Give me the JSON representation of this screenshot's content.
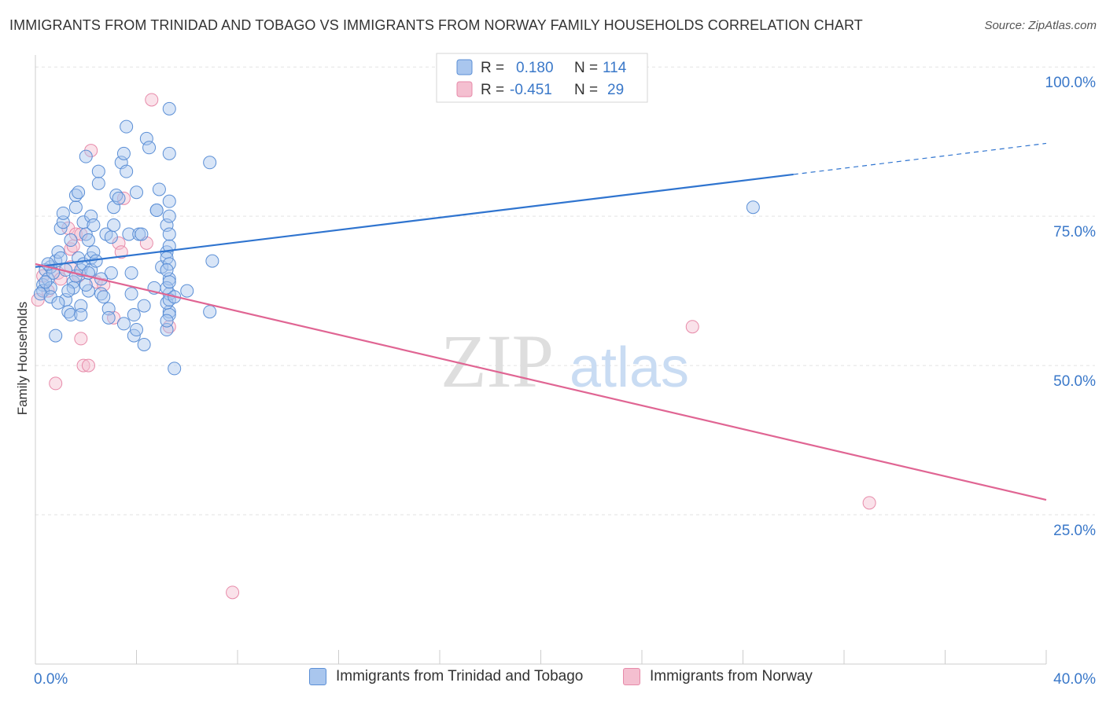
{
  "title": "IMMIGRANTS FROM TRINIDAD AND TOBAGO VS IMMIGRANTS FROM NORWAY FAMILY HOUSEHOLDS CORRELATION CHART",
  "source": "Source: ZipAtlas.com",
  "watermark": {
    "zip": "ZIP",
    "atlas": "atlas"
  },
  "colors": {
    "blue": "#5b8fd6",
    "blue_fill": "#a9c6ee",
    "blue_line": "#2f74cf",
    "pink": "#e78aa9",
    "pink_fill": "#f4bfd0",
    "pink_line": "#e06593",
    "axis_text": "#3a78c9",
    "grid": "#e3e3e3"
  },
  "legend_top": [
    {
      "r_label": "R =",
      "r_value": "0.180",
      "n_label": "N =",
      "n_value": "114"
    },
    {
      "r_label": "R =",
      "r_value": "-0.451",
      "n_label": "N =",
      "n_value": "29"
    }
  ],
  "chart_data": {
    "type": "scatter",
    "title": "IMMIGRANTS FROM TRINIDAD AND TOBAGO VS IMMIGRANTS FROM NORWAY FAMILY HOUSEHOLDS CORRELATION CHART",
    "xlabel": "",
    "ylabel": "Family Households",
    "xlim": [
      0,
      40
    ],
    "ylim": [
      0,
      102
    ],
    "x_tick_labels": [
      "0.0%",
      "40.0%"
    ],
    "y_ticks": [
      25,
      50,
      75,
      100
    ],
    "y_tick_labels": [
      "25.0%",
      "50.0%",
      "75.0%",
      "100.0%"
    ],
    "grid": "horizontal dashed",
    "legend": "top-center and bottom",
    "series": [
      {
        "name": "Immigrants from Trinidad and Tobago",
        "color": "#5b8fd6",
        "regression": {
          "x0": 0,
          "y0": 66.5,
          "x1": 30,
          "y1": 82.0,
          "dash_to_x": 40,
          "dash_to_y": 87.2
        },
        "points": [
          [
            0.3,
            63.5
          ],
          [
            0.3,
            62.5
          ],
          [
            0.4,
            66.0
          ],
          [
            0.5,
            64.5
          ],
          [
            0.6,
            66.5
          ],
          [
            0.7,
            65.5
          ],
          [
            0.8,
            67.5
          ],
          [
            0.6,
            63.0
          ],
          [
            0.5,
            67.0
          ],
          [
            0.8,
            55.0
          ],
          [
            0.9,
            69.0
          ],
          [
            1.0,
            73.0
          ],
          [
            1.0,
            68.0
          ],
          [
            1.1,
            74.0
          ],
          [
            1.1,
            75.5
          ],
          [
            1.2,
            66.0
          ],
          [
            1.2,
            61.0
          ],
          [
            1.3,
            59.0
          ],
          [
            1.4,
            58.5
          ],
          [
            1.4,
            71.0
          ],
          [
            1.5,
            64.0
          ],
          [
            1.5,
            63.0
          ],
          [
            1.6,
            65.0
          ],
          [
            1.6,
            76.5
          ],
          [
            1.6,
            78.5
          ],
          [
            1.7,
            79.0
          ],
          [
            1.7,
            68.0
          ],
          [
            1.8,
            66.0
          ],
          [
            1.8,
            60.0
          ],
          [
            1.8,
            58.5
          ],
          [
            1.9,
            67.0
          ],
          [
            1.9,
            74.0
          ],
          [
            2.0,
            85.0
          ],
          [
            2.0,
            72.0
          ],
          [
            2.1,
            71.0
          ],
          [
            2.2,
            68.0
          ],
          [
            2.2,
            75.0
          ],
          [
            2.2,
            66.0
          ],
          [
            2.3,
            69.0
          ],
          [
            2.4,
            67.5
          ],
          [
            2.1,
            62.5
          ],
          [
            2.0,
            63.5
          ],
          [
            2.1,
            65.5
          ],
          [
            2.3,
            73.5
          ],
          [
            2.5,
            80.5
          ],
          [
            2.5,
            82.5
          ],
          [
            2.6,
            62.0
          ],
          [
            2.7,
            61.5
          ],
          [
            2.8,
            72.0
          ],
          [
            2.9,
            59.5
          ],
          [
            2.9,
            58.0
          ],
          [
            3.0,
            71.5
          ],
          [
            3.0,
            65.5
          ],
          [
            3.1,
            76.5
          ],
          [
            3.2,
            78.5
          ],
          [
            3.3,
            78.0
          ],
          [
            3.1,
            73.5
          ],
          [
            3.4,
            84.0
          ],
          [
            3.5,
            57.0
          ],
          [
            3.5,
            85.5
          ],
          [
            3.6,
            82.5
          ],
          [
            3.6,
            90.0
          ],
          [
            3.7,
            72.0
          ],
          [
            3.8,
            65.5
          ],
          [
            3.8,
            62.0
          ],
          [
            3.9,
            55.0
          ],
          [
            3.9,
            58.5
          ],
          [
            4.0,
            56.0
          ],
          [
            4.0,
            79.0
          ],
          [
            4.1,
            72.0
          ],
          [
            4.2,
            72.0
          ],
          [
            4.3,
            53.5
          ],
          [
            4.3,
            60.0
          ],
          [
            4.4,
            88.0
          ],
          [
            4.5,
            86.5
          ],
          [
            4.7,
            63.0
          ],
          [
            4.8,
            76.0
          ],
          [
            4.9,
            79.5
          ],
          [
            5.0,
            66.5
          ],
          [
            5.2,
            69.0
          ],
          [
            5.3,
            59.0
          ],
          [
            5.3,
            93.0
          ],
          [
            5.3,
            85.5
          ],
          [
            5.2,
            73.5
          ],
          [
            5.3,
            64.5
          ],
          [
            5.3,
            58.5
          ],
          [
            5.3,
            70.0
          ],
          [
            5.2,
            60.5
          ],
          [
            5.2,
            68.0
          ],
          [
            5.3,
            62.0
          ],
          [
            5.2,
            56.0
          ],
          [
            5.2,
            63.0
          ],
          [
            5.3,
            61.0
          ],
          [
            5.3,
            67.0
          ],
          [
            5.3,
            75.0
          ],
          [
            5.3,
            77.5
          ],
          [
            5.3,
            72.0
          ],
          [
            5.3,
            64.0
          ],
          [
            5.2,
            57.5
          ],
          [
            5.2,
            66.0
          ],
          [
            5.5,
            61.5
          ],
          [
            5.5,
            49.5
          ],
          [
            6.0,
            62.5
          ],
          [
            6.9,
            84.0
          ],
          [
            6.9,
            59.0
          ],
          [
            7.0,
            67.5
          ],
          [
            28.4,
            76.5
          ],
          [
            0.2,
            62.0
          ],
          [
            0.4,
            64.0
          ],
          [
            0.6,
            61.5
          ],
          [
            0.9,
            60.5
          ],
          [
            1.3,
            62.5
          ],
          [
            2.6,
            64.5
          ],
          [
            4.8,
            76.0
          ]
        ]
      },
      {
        "name": "Immigrants from Norway",
        "color": "#e78aa9",
        "regression": {
          "x0": 0,
          "y0": 67.0,
          "x1": 40,
          "y1": 27.5
        },
        "points": [
          [
            0.1,
            61.0
          ],
          [
            0.3,
            65.0
          ],
          [
            0.5,
            62.5
          ],
          [
            0.8,
            47.0
          ],
          [
            0.9,
            65.5
          ],
          [
            1.0,
            64.5
          ],
          [
            1.3,
            73.0
          ],
          [
            1.4,
            66.5
          ],
          [
            1.4,
            69.5
          ],
          [
            1.5,
            70.0
          ],
          [
            1.6,
            72.0
          ],
          [
            1.7,
            65.0
          ],
          [
            1.8,
            54.5
          ],
          [
            1.8,
            72.0
          ],
          [
            1.9,
            50.0
          ],
          [
            2.1,
            50.0
          ],
          [
            2.2,
            86.0
          ],
          [
            2.4,
            64.0
          ],
          [
            2.7,
            63.5
          ],
          [
            3.1,
            58.0
          ],
          [
            3.3,
            70.5
          ],
          [
            3.4,
            69.0
          ],
          [
            3.5,
            78.0
          ],
          [
            4.4,
            70.5
          ],
          [
            4.6,
            94.5
          ],
          [
            5.3,
            56.5
          ],
          [
            7.8,
            12.0
          ],
          [
            26.0,
            56.5
          ],
          [
            33.0,
            27.0
          ]
        ]
      }
    ]
  },
  "y_axis_label": "Family Households",
  "bottom_legend": [
    {
      "label": "Immigrants from Trinidad and Tobago"
    },
    {
      "label": "Immigrants from Norway"
    }
  ]
}
